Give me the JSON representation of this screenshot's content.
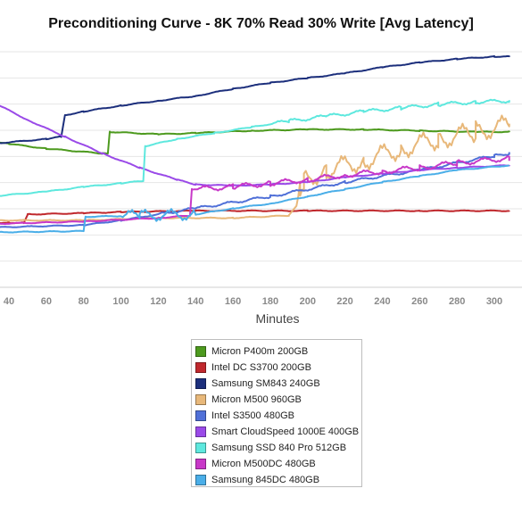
{
  "chart_data": {
    "type": "line",
    "title": "Preconditioning Curve - 8K 70% Read 30% Write [Avg Latency]",
    "xlabel": "Minutes",
    "ylabel": "",
    "x_ticks": [
      40,
      60,
      80,
      100,
      120,
      140,
      160,
      180,
      200,
      220,
      240,
      260,
      280,
      300
    ],
    "xlim": [
      30,
      308
    ],
    "ylim": [
      0,
      10
    ],
    "grid": true,
    "legend_position": "bottom",
    "series": [
      {
        "name": "Micron P400m 200GB",
        "color": "#4d9a1e",
        "points": [
          [
            30,
            6.1
          ],
          [
            40,
            6.0
          ],
          [
            60,
            5.8
          ],
          [
            90,
            5.6
          ],
          [
            93,
            5.6
          ],
          [
            94,
            6.5
          ],
          [
            120,
            6.4
          ],
          [
            140,
            6.45
          ],
          [
            170,
            6.55
          ],
          [
            200,
            6.6
          ],
          [
            230,
            6.6
          ],
          [
            260,
            6.55
          ],
          [
            290,
            6.5
          ],
          [
            308,
            6.5
          ]
        ]
      },
      {
        "name": "Intel DC S3700 200GB",
        "color": "#c0282d",
        "points": [
          [
            30,
            2.7
          ],
          [
            40,
            2.7
          ],
          [
            48,
            2.7
          ],
          [
            50,
            3.05
          ],
          [
            80,
            3.1
          ],
          [
            100,
            3.15
          ],
          [
            140,
            3.2
          ],
          [
            200,
            3.2
          ],
          [
            260,
            3.2
          ],
          [
            308,
            3.2
          ]
        ]
      },
      {
        "name": "Samsung SM843 240GB",
        "color": "#1c2f7c",
        "points": [
          [
            30,
            6.0
          ],
          [
            60,
            6.2
          ],
          [
            68,
            6.3
          ],
          [
            70,
            7.2
          ],
          [
            80,
            7.35
          ],
          [
            100,
            7.6
          ],
          [
            120,
            7.8
          ],
          [
            140,
            8.0
          ],
          [
            160,
            8.3
          ],
          [
            180,
            8.55
          ],
          [
            200,
            8.75
          ],
          [
            220,
            8.95
          ],
          [
            240,
            9.2
          ],
          [
            260,
            9.4
          ],
          [
            280,
            9.55
          ],
          [
            300,
            9.65
          ],
          [
            308,
            9.65
          ]
        ]
      },
      {
        "name": "Micron M500 960GB",
        "color": "#e8b87a",
        "points": [
          [
            30,
            2.8
          ],
          [
            80,
            2.8
          ],
          [
            120,
            2.9
          ],
          [
            160,
            2.9
          ],
          [
            190,
            3.0
          ],
          [
            194,
            3.4
          ],
          [
            196,
            4.2
          ],
          [
            198,
            4.5
          ],
          [
            210,
            4.9
          ],
          [
            230,
            5.3
          ],
          [
            250,
            5.8
          ],
          [
            270,
            6.2
          ],
          [
            290,
            6.5
          ],
          [
            308,
            6.8
          ]
        ]
      },
      {
        "name": "Intel S3500 480GB",
        "color": "#5070d8",
        "points": [
          [
            30,
            2.5
          ],
          [
            80,
            2.6
          ],
          [
            100,
            2.8
          ],
          [
            140,
            3.3
          ],
          [
            180,
            3.8
          ],
          [
            220,
            4.4
          ],
          [
            260,
            4.9
          ],
          [
            300,
            5.5
          ],
          [
            308,
            5.6
          ]
        ]
      },
      {
        "name": "Smart CloudSpeed 1000E 400GB",
        "color": "#9a4ae8",
        "points": [
          [
            30,
            7.8
          ],
          [
            50,
            7.0
          ],
          [
            70,
            6.3
          ],
          [
            90,
            5.6
          ],
          [
            110,
            5.0
          ],
          [
            130,
            4.5
          ],
          [
            140,
            4.3
          ],
          [
            160,
            4.25
          ],
          [
            180,
            4.3
          ],
          [
            200,
            4.4
          ],
          [
            220,
            4.6
          ],
          [
            240,
            4.75
          ],
          [
            260,
            4.9
          ],
          [
            280,
            5.0
          ],
          [
            308,
            5.1
          ]
        ]
      },
      {
        "name": "Samsung SSD 840 Pro 512GB",
        "color": "#5ee8de",
        "points": [
          [
            30,
            3.8
          ],
          [
            60,
            4.0
          ],
          [
            80,
            4.2
          ],
          [
            100,
            4.35
          ],
          [
            112,
            4.45
          ],
          [
            113,
            5.9
          ],
          [
            130,
            6.2
          ],
          [
            150,
            6.45
          ],
          [
            170,
            6.7
          ],
          [
            190,
            6.95
          ],
          [
            210,
            7.15
          ],
          [
            230,
            7.35
          ],
          [
            250,
            7.5
          ],
          [
            270,
            7.65
          ],
          [
            290,
            7.75
          ],
          [
            308,
            7.8
          ]
        ]
      },
      {
        "name": "Micron M500DC 480GB",
        "color": "#c838c8",
        "points": [
          [
            30,
            2.65
          ],
          [
            80,
            2.75
          ],
          [
            120,
            2.9
          ],
          [
            137,
            3.0
          ],
          [
            138,
            4.1
          ],
          [
            160,
            4.2
          ],
          [
            180,
            4.35
          ],
          [
            200,
            4.5
          ],
          [
            220,
            4.7
          ],
          [
            240,
            4.85
          ],
          [
            260,
            5.0
          ],
          [
            280,
            5.2
          ],
          [
            308,
            5.4
          ]
        ]
      },
      {
        "name": "Samsung 845DC 480GB",
        "color": "#4aaee8",
        "points": [
          [
            30,
            2.3
          ],
          [
            80,
            2.35
          ],
          [
            81,
            2.95
          ],
          [
            110,
            3.0
          ],
          [
            140,
            3.05
          ],
          [
            160,
            3.3
          ],
          [
            180,
            3.5
          ],
          [
            200,
            3.8
          ],
          [
            220,
            4.1
          ],
          [
            240,
            4.4
          ],
          [
            260,
            4.65
          ],
          [
            280,
            4.9
          ],
          [
            308,
            5.1
          ]
        ]
      }
    ]
  }
}
